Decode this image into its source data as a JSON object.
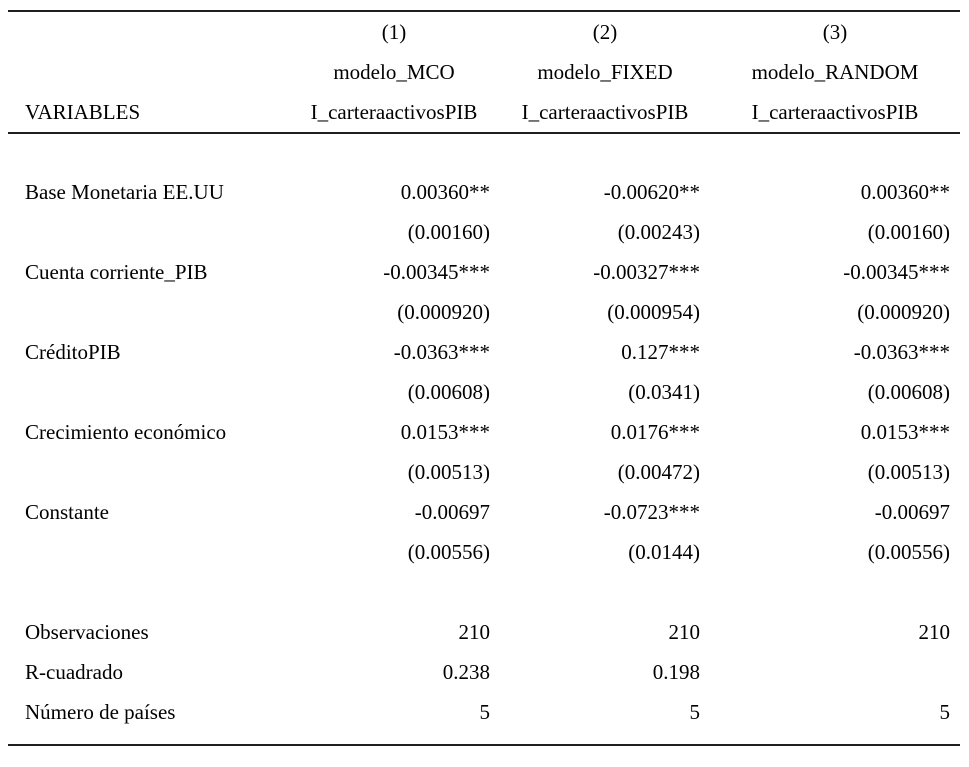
{
  "colors": {
    "background": "#ffffff",
    "text": "#000000",
    "rule": "#1f1f1f"
  },
  "table": {
    "header": {
      "model_numbers": [
        "(1)",
        "(2)",
        "(3)"
      ],
      "model_names": [
        "modelo_MCO",
        "modelo_FIXED",
        "modelo_RANDOM"
      ],
      "variables_label": "VARIABLES",
      "dep_vars": [
        "I_carteraactivosPIB",
        "I_carteraactivosPIB",
        "I_carteraactivosPIB"
      ]
    },
    "rows": [
      {
        "label": "Base Monetaria EE.UU",
        "coefs": [
          "0.00360**",
          "-0.00620**",
          "0.00360**"
        ],
        "se": [
          "(0.00160)",
          "(0.00243)",
          "(0.00160)"
        ]
      },
      {
        "label": "Cuenta corriente_PIB",
        "coefs": [
          "-0.00345***",
          "-0.00327***",
          "-0.00345***"
        ],
        "se": [
          "(0.000920)",
          "(0.000954)",
          "(0.000920)"
        ]
      },
      {
        "label": "CréditoPIB",
        "coefs": [
          "-0.0363***",
          "0.127***",
          "-0.0363***"
        ],
        "se": [
          "(0.00608)",
          "(0.0341)",
          "(0.00608)"
        ]
      },
      {
        "label": "Crecimiento económico",
        "coefs": [
          "0.0153***",
          "0.0176***",
          "0.0153***"
        ],
        "se": [
          "(0.00513)",
          "(0.00472)",
          "(0.00513)"
        ]
      },
      {
        "label": "Constante",
        "coefs": [
          "-0.00697",
          "-0.0723***",
          "-0.00697"
        ],
        "se": [
          "(0.00556)",
          "(0.0144)",
          "(0.00556)"
        ]
      }
    ],
    "stats": [
      {
        "label": "Observaciones",
        "values": [
          "210",
          "210",
          "210"
        ]
      },
      {
        "label": "R-cuadrado",
        "values": [
          "0.238",
          "0.198",
          ""
        ]
      },
      {
        "label": "Número de países",
        "values": [
          "5",
          "5",
          "5"
        ]
      }
    ]
  }
}
